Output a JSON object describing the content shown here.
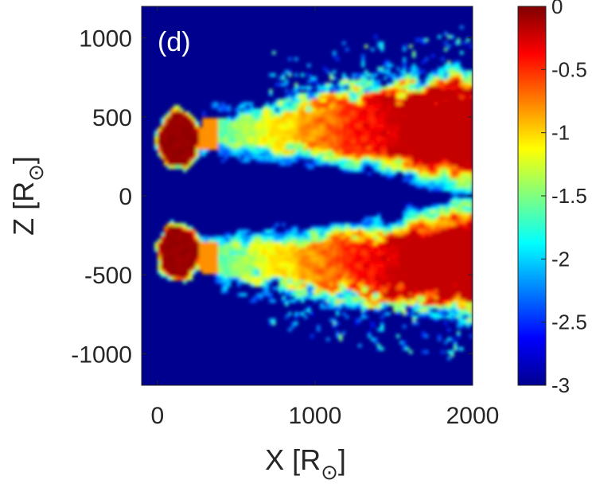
{
  "chart_data": {
    "type": "heatmap",
    "panel_label": "(d)",
    "xlabel": {
      "main": "X [R",
      "subscript": "⊙",
      "close": "]"
    },
    "ylabel": {
      "main": "Z [R",
      "subscript": "⊙",
      "close": "]"
    },
    "xlim": [
      -100,
      2000
    ],
    "ylim": [
      -1200,
      1200
    ],
    "x_ticks": [
      0,
      1000,
      2000
    ],
    "x_tick_labels": [
      "0",
      "1000",
      "2000"
    ],
    "y_ticks": [
      1000,
      500,
      0,
      -500,
      -1000
    ],
    "y_tick_labels": [
      "1000",
      "500",
      "0",
      "-500",
      "-1000"
    ],
    "colorbar": {
      "colormap": "jet",
      "range": [
        -3,
        0
      ],
      "ticks": [
        0,
        -0.5,
        -1,
        -1.5,
        -2,
        -2.5,
        -3
      ],
      "tick_labels": [
        "0",
        "-0.5",
        "-1",
        "-1.5",
        "-2",
        "-2.5",
        "-3"
      ]
    },
    "background_value": -3,
    "features": [
      {
        "name": "upper core",
        "x_center": 130,
        "z_center": 360,
        "x_halfwidth": 140,
        "z_halfwidth": 200,
        "peak_value": 0
      },
      {
        "name": "lower core",
        "x_center": 140,
        "z_center": -360,
        "x_halfwidth": 150,
        "z_halfwidth": 200,
        "peak_value": 0
      },
      {
        "name": "upper outflow",
        "x_start": 350,
        "x_end": 2000,
        "z_inner_start": 280,
        "z_inner_end": 100,
        "z_outer_start": 520,
        "z_outer_end": 850,
        "peak_value": -0.2
      },
      {
        "name": "lower outflow",
        "x_start": 350,
        "x_end": 2000,
        "z_inner_start": -280,
        "z_inner_end": -100,
        "z_outer_start": -520,
        "z_outer_end": -820,
        "peak_value": -0.2
      }
    ]
  }
}
